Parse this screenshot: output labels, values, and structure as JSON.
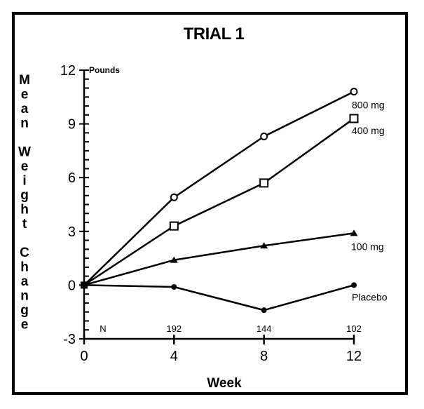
{
  "chart_data": {
    "type": "line",
    "title": "TRIAL 1",
    "xlabel": "Week",
    "ylabel": "Mean Weight Change",
    "yunit": "Pounds",
    "x": [
      0,
      4,
      8,
      12
    ],
    "xlim": [
      0,
      12
    ],
    "ylim": [
      -3,
      12
    ],
    "xticks": [
      "0",
      "4",
      "8",
      "12"
    ],
    "yticks": [
      "-3",
      "0",
      "3",
      "6",
      "9",
      "12"
    ],
    "ytick_values": [
      -3,
      0,
      3,
      6,
      9,
      12
    ],
    "y_minor_step": 0.5,
    "grid": false,
    "legend": "inline-right",
    "n_row": {
      "label": "N",
      "values": [
        "192",
        "144",
        "102"
      ],
      "weeks": [
        4,
        8,
        12
      ]
    },
    "series": [
      {
        "name": "800 mg",
        "marker": "open-circle",
        "values": [
          0,
          4.9,
          8.3,
          10.8
        ]
      },
      {
        "name": "400 mg",
        "marker": "open-square",
        "values": [
          0,
          3.3,
          5.7,
          9.3
        ]
      },
      {
        "name": "100 mg",
        "marker": "filled-triangle",
        "values": [
          0,
          1.4,
          2.2,
          2.9
        ]
      },
      {
        "name": "Placebo",
        "marker": "filled-circle",
        "values": [
          0,
          -0.1,
          -1.4,
          0.0
        ]
      }
    ],
    "colors": {
      "line": "#000000",
      "background": "#ffffff",
      "frame": "#000000"
    }
  }
}
